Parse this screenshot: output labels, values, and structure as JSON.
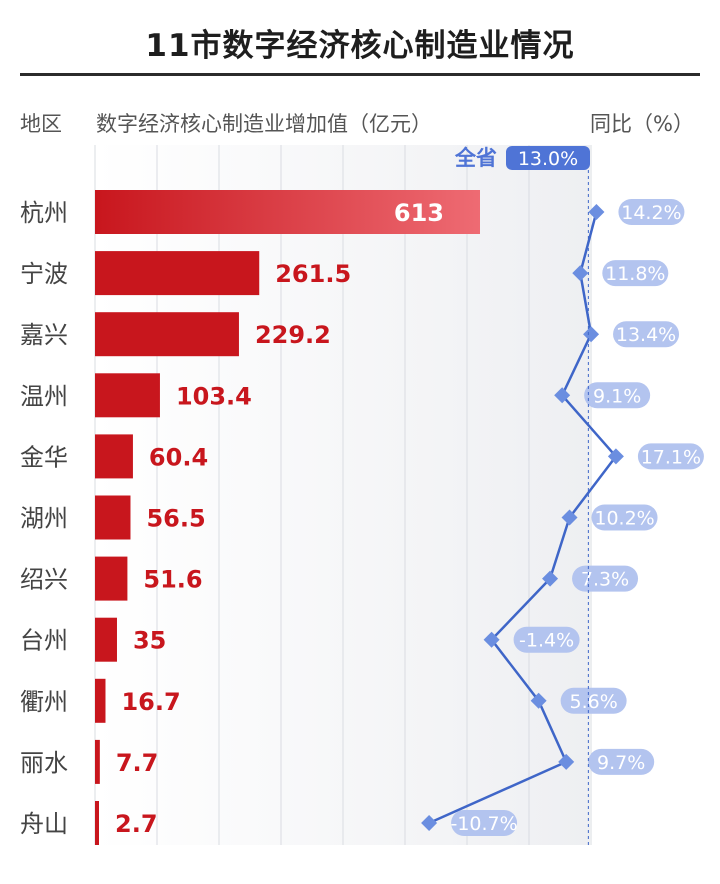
{
  "title": "11市数字经济核心制造业情况",
  "headers": {
    "region": "地区",
    "value": "数字经济核心制造业增加值（亿元）",
    "yoy": "同比（%）"
  },
  "province_label": "全省",
  "province_value": "13.0%",
  "colors": {
    "bar_dark": "#c8161d",
    "bar_light": "#ee6b73",
    "value_text": "#c8161d",
    "line": "#3f66c8",
    "marker": "#6b8ee0",
    "pill": "#b3c4ef",
    "pill_text": "#ffffff",
    "province_pill": "#4f74d6"
  },
  "chart_data": {
    "type": "bar+line",
    "categories": [
      "杭州",
      "宁波",
      "嘉兴",
      "温州",
      "金华",
      "湖州",
      "绍兴",
      "台州",
      "衢州",
      "丽水",
      "舟山"
    ],
    "series": [
      {
        "values": [
          613,
          261.5,
          229.2,
          103.4,
          60.4,
          56.5,
          51.6,
          35,
          16.7,
          7.7,
          2.7
        ],
        "labels": [
          "613",
          "261.5",
          "229.2",
          "103.4",
          "60.4",
          "56.5",
          "51.6",
          "35",
          "16.7",
          "7.7",
          "2.7"
        ]
      },
      {
        "values": [
          14.2,
          11.8,
          13.4,
          9.1,
          17.1,
          10.2,
          7.3,
          -1.4,
          5.6,
          9.7,
          -10.7
        ],
        "labels": [
          "14.2%",
          "11.8%",
          "13.4%",
          "9.1%",
          "17.1%",
          "10.2%",
          "7.3%",
          "-1.4%",
          "5.6%",
          "9.7%",
          "-10.7%"
        ]
      }
    ],
    "reference_line": 13.0
  }
}
